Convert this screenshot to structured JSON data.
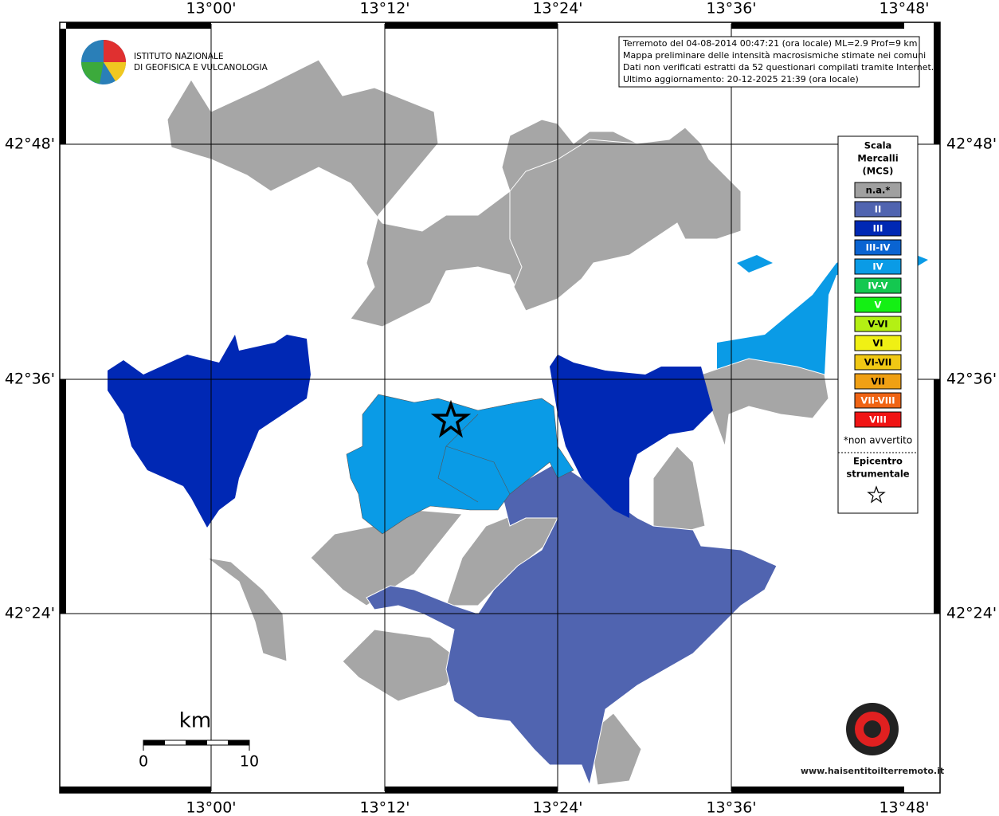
{
  "axes": {
    "lon_labels": [
      "13°00'",
      "13°12'",
      "13°24'",
      "13°36'",
      "13°48'"
    ],
    "lat_labels": [
      "42°48'",
      "42°36'",
      "42°24'"
    ]
  },
  "info_box": {
    "lines": [
      "Terremoto del 04-08-2014 00:47:21 (ora locale) ML=2.9 Prof=9 km",
      "Mappa preliminare delle intensità macrosismiche stimate nei comuni",
      "Dati non verificati estratti da 52 questionari compilati tramite Internet.",
      "Ultimo aggiornamento: 20-12-2025 21:39 (ora locale)"
    ]
  },
  "logo": {
    "lines": [
      "ISTITUTO NAZIONALE",
      "DI GEOFISICA E VULCANOLOGIA"
    ]
  },
  "legend": {
    "title": [
      "Scala",
      "Mercalli",
      "(MCS)"
    ],
    "items": [
      {
        "label": "n.a.*",
        "color": "#a0a0a0"
      },
      {
        "label": "II",
        "color": "#5064b0"
      },
      {
        "label": "III",
        "color": "#0028b4"
      },
      {
        "label": "III-IV",
        "color": "#0a64d2"
      },
      {
        "label": "IV",
        "color": "#0a9be6"
      },
      {
        "label": "IV-V",
        "color": "#14c850"
      },
      {
        "label": "V",
        "color": "#14f014"
      },
      {
        "label": "V-VI",
        "color": "#b4f014"
      },
      {
        "label": "VI",
        "color": "#f0f014"
      },
      {
        "label": "VI-VII",
        "color": "#f0c814"
      },
      {
        "label": "VII",
        "color": "#f0a014"
      },
      {
        "label": "VII-VIII",
        "color": "#f06414"
      },
      {
        "label": "VIII",
        "color": "#f01414"
      }
    ],
    "note": "*non avvertito",
    "epicenter": [
      "Epicentro",
      "strumentale"
    ]
  },
  "scale_bar": {
    "unit": "km",
    "ticks": [
      0,
      10
    ]
  },
  "watermark": "www.haisentitoilterremoto.it"
}
